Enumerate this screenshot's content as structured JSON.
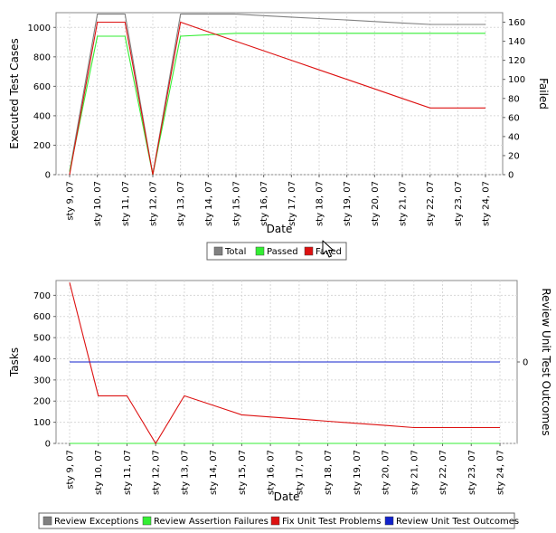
{
  "chart_data": [
    {
      "type": "line",
      "categories": [
        "sty 9, 07",
        "sty 10, 07",
        "sty 11, 07",
        "sty 12, 07",
        "sty 13, 07",
        "sty 14, 07",
        "sty 15, 07",
        "sty 16, 07",
        "sty 17, 07",
        "sty 18, 07",
        "sty 19, 07",
        "sty 20, 07",
        "sty 21, 07",
        "sty 22, 07",
        "sty 23, 07",
        "sty 24, 07"
      ],
      "xlabel": "Date",
      "ylabel": "Executed Test Cases",
      "y2label": "Failed",
      "ylim": [
        0,
        1100
      ],
      "yticks": [
        0,
        200,
        400,
        600,
        800,
        1000
      ],
      "y2lim": [
        0,
        170
      ],
      "y2ticks": [
        0,
        20,
        40,
        60,
        80,
        100,
        120,
        140,
        160
      ],
      "grid": true,
      "legend": "bottom",
      "series": [
        {
          "name": "Total",
          "axis": "left",
          "color": "#808080",
          "values": [
            20,
            1090,
            1090,
            0,
            1090,
            1090,
            1090,
            1080,
            1070,
            1060,
            1050,
            1040,
            1030,
            1020,
            1020,
            1020
          ]
        },
        {
          "name": "Passed",
          "axis": "left",
          "color": "#33ee33",
          "values": [
            20,
            940,
            940,
            0,
            940,
            950,
            960,
            960,
            960,
            960,
            960,
            960,
            960,
            960,
            960,
            960
          ]
        },
        {
          "name": "Failed",
          "axis": "right",
          "color": "#dd1111",
          "values": [
            0,
            160,
            160,
            0,
            160,
            150,
            140,
            130,
            120,
            110,
            100,
            90,
            80,
            70,
            70,
            70
          ]
        }
      ]
    },
    {
      "type": "line",
      "categories": [
        "sty 9, 07",
        "sty 10, 07",
        "sty 11, 07",
        "sty 12, 07",
        "sty 13, 07",
        "sty 14, 07",
        "sty 15, 07",
        "sty 16, 07",
        "sty 17, 07",
        "sty 18, 07",
        "sty 19, 07",
        "sty 20, 07",
        "sty 21, 07",
        "sty 22, 07",
        "sty 23, 07",
        "sty 24, 07"
      ],
      "xlabel": "Date",
      "ylabel": "Tasks",
      "y2label": "Review Unit Test Outcomes",
      "ylim": [
        0,
        770
      ],
      "yticks": [
        0,
        100,
        200,
        300,
        400,
        500,
        600,
        700
      ],
      "y2ticks": [
        0
      ],
      "grid": true,
      "legend": "bottom",
      "series": [
        {
          "name": "Review Exceptions",
          "axis": "left",
          "color": "#808080",
          "values": [
            0,
            0,
            0,
            0,
            0,
            0,
            0,
            0,
            0,
            0,
            0,
            0,
            0,
            0,
            0,
            0
          ]
        },
        {
          "name": "Review Assertion Failures",
          "axis": "left",
          "color": "#33ee33",
          "values": [
            0,
            0,
            0,
            0,
            0,
            0,
            0,
            0,
            0,
            0,
            0,
            0,
            0,
            0,
            0,
            0
          ]
        },
        {
          "name": "Fix Unit Test Problems",
          "axis": "left",
          "color": "#dd1111",
          "values": [
            760,
            225,
            225,
            0,
            225,
            180,
            135,
            125,
            115,
            105,
            95,
            85,
            75,
            75,
            75,
            75
          ]
        },
        {
          "name": "Review Unit Test Outcomes",
          "axis": "right",
          "color": "#1122cc",
          "values": [
            0,
            0,
            0,
            0,
            0,
            0,
            0,
            0,
            0,
            0,
            0,
            0,
            0,
            0,
            0,
            0
          ]
        }
      ]
    }
  ]
}
